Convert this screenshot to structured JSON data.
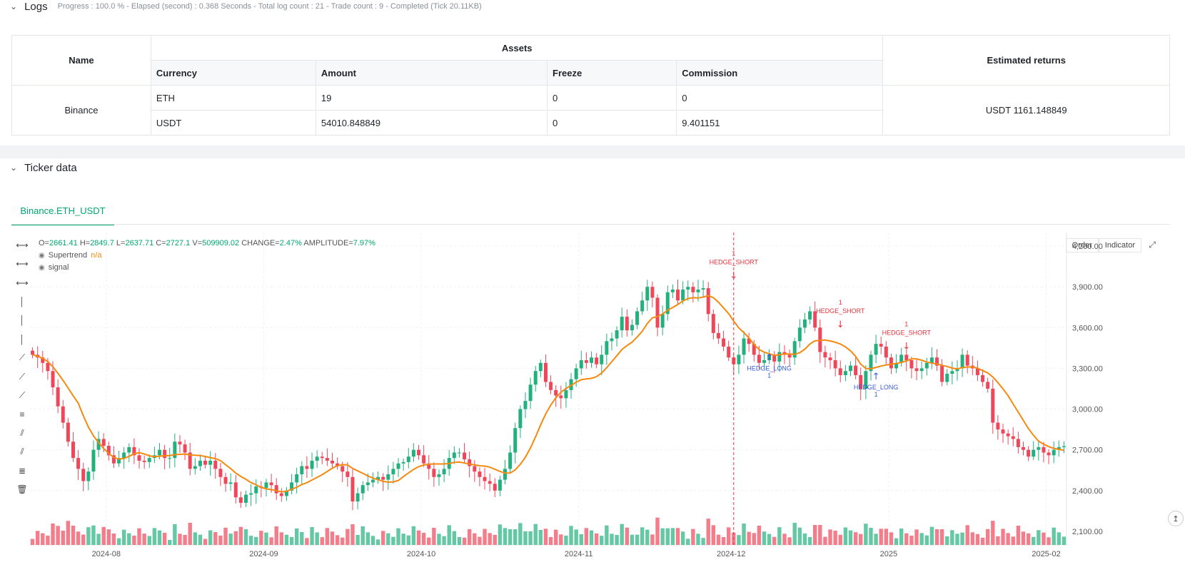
{
  "logs": {
    "title": "Logs",
    "status": "Progress : 100.0 % - Elapsed (second) : 0.368 Seconds - Total log count : 21 - Trade count : 9 - Completed (Tick 20.11KB)"
  },
  "assets_table": {
    "name_header": "Name",
    "assets_header": "Assets",
    "returns_header": "Estimated returns",
    "columns": [
      "Currency",
      "Amount",
      "Freeze",
      "Commission"
    ],
    "exchange": "Binance",
    "rows": [
      [
        "ETH",
        "19",
        "0",
        "0"
      ],
      [
        "USDT",
        "54010.848849",
        "0",
        "9.401151"
      ]
    ],
    "estimated_returns": "USDT 1161.148849"
  },
  "ticker": {
    "title": "Ticker data",
    "tab": "Binance.ETH_USDT"
  },
  "chart_header": {
    "o_label": "O=",
    "o": "2661.41",
    "h_label": "H=",
    "h": "2849.7",
    "l_label": "L=",
    "l": "2637.71",
    "c_label": "C=",
    "c": "2727.1",
    "v_label": "V=",
    "v": "509909.02",
    "change_label": "CHANGE=",
    "change": "2.47%",
    "amp_label": "AMPLITUDE=",
    "amp": "7.97%",
    "supertrend": "Supertrend",
    "supertrend_value": "n/a",
    "signal": "signal",
    "order_btn": "Order",
    "indicator_btn": "Indicator"
  },
  "colors": {
    "up": "#22b07d",
    "down": "#f0465a",
    "line": "#f5890f",
    "long": "#3a5bd9",
    "short": "#e8323c"
  },
  "icons": [
    "horizontal-line-icon",
    "horizontal-ray-icon",
    "horizontal-segment-icon",
    "vertical-line-icon",
    "vertical-ray-icon",
    "vertical-segment-icon",
    "trend-line-icon",
    "ray-line-icon",
    "segment-icon",
    "price-range-icon",
    "parallel-channel-icon",
    "fib-icon",
    "measure-icon",
    "trash-icon"
  ],
  "chart_data": {
    "type": "candlestick",
    "y_ticks": [
      "4,200.00",
      "3,900.00",
      "3,600.00",
      "3,300.00",
      "3,000.00",
      "2,700.00",
      "2,400.00",
      "2,100.00"
    ],
    "y_tick_values": [
      4200,
      3900,
      3600,
      3300,
      3000,
      2700,
      2400,
      2100
    ],
    "ylim": [
      2000,
      4300
    ],
    "x_ticks": [
      "2024-08",
      "2024-09",
      "2024-10",
      "2024-11",
      "2024-12",
      "2025",
      "2025-02"
    ],
    "x_tick_index": [
      15,
      46,
      77,
      108,
      138,
      169,
      200
    ],
    "closes": [
      3400,
      3380,
      3340,
      3280,
      3160,
      3020,
      2900,
      2760,
      2640,
      2560,
      2470,
      2540,
      2700,
      2780,
      2730,
      2660,
      2600,
      2640,
      2680,
      2720,
      2660,
      2620,
      2610,
      2640,
      2660,
      2700,
      2640,
      2640,
      2760,
      2740,
      2680,
      2560,
      2580,
      2620,
      2590,
      2620,
      2560,
      2500,
      2450,
      2460,
      2350,
      2310,
      2370,
      2380,
      2430,
      2420,
      2460,
      2440,
      2380,
      2360,
      2400,
      2460,
      2520,
      2580,
      2560,
      2620,
      2650,
      2640,
      2620,
      2600,
      2580,
      2540,
      2500,
      2320,
      2380,
      2440,
      2460,
      2480,
      2500,
      2480,
      2520,
      2560,
      2600,
      2610,
      2650,
      2700,
      2660,
      2600,
      2560,
      2500,
      2520,
      2560,
      2640,
      2680,
      2680,
      2630,
      2580,
      2540,
      2500,
      2470,
      2450,
      2400,
      2480,
      2560,
      2680,
      2860,
      3000,
      3060,
      3180,
      3280,
      3340,
      3200,
      3140,
      3100,
      3080,
      3140,
      3220,
      3300,
      3360,
      3340,
      3380,
      3330,
      3400,
      3500,
      3520,
      3580,
      3680,
      3580,
      3620,
      3720,
      3800,
      3900,
      3820,
      3600,
      3700,
      3860,
      3880,
      3800,
      3880,
      3900,
      3860,
      3880,
      3890,
      3700,
      3560,
      3520,
      3460,
      3380,
      3330,
      3400,
      3520,
      3480,
      3400,
      3340,
      3360,
      3400,
      3350,
      3420,
      3400,
      3380,
      3500,
      3600,
      3660,
      3720,
      3600,
      3420,
      3380,
      3360,
      3300,
      3250,
      3280,
      3320,
      3250,
      3150,
      3280,
      3400,
      3480,
      3460,
      3380,
      3300,
      3340,
      3400,
      3360,
      3300,
      3280,
      3300,
      3340,
      3380,
      3320,
      3200,
      3260,
      3280,
      3300,
      3400,
      3320,
      3300,
      3250,
      3200,
      3150,
      2900,
      2850,
      2820,
      2800,
      2780,
      2720,
      2700,
      2650,
      2700,
      2720,
      2680,
      2660,
      2700,
      2720,
      2727
    ],
    "supertrend_line": "approx. 20-period moving average of closes",
    "signals": [
      {
        "label": "HEDGE_SHORT",
        "count": "1",
        "index": 138,
        "price": 3920
      },
      {
        "label": "HEDGE_LONG",
        "count": "1",
        "index": 145,
        "price": 3420
      },
      {
        "label": "HEDGE_SHORT",
        "count": "1",
        "index": 159,
        "price": 3560
      },
      {
        "label": "HEDGE_LONG",
        "count": "1",
        "index": 166,
        "price": 3280
      },
      {
        "label": "HEDGE_SHORT",
        "count": "1",
        "index": 172,
        "price": 3400
      }
    ]
  }
}
